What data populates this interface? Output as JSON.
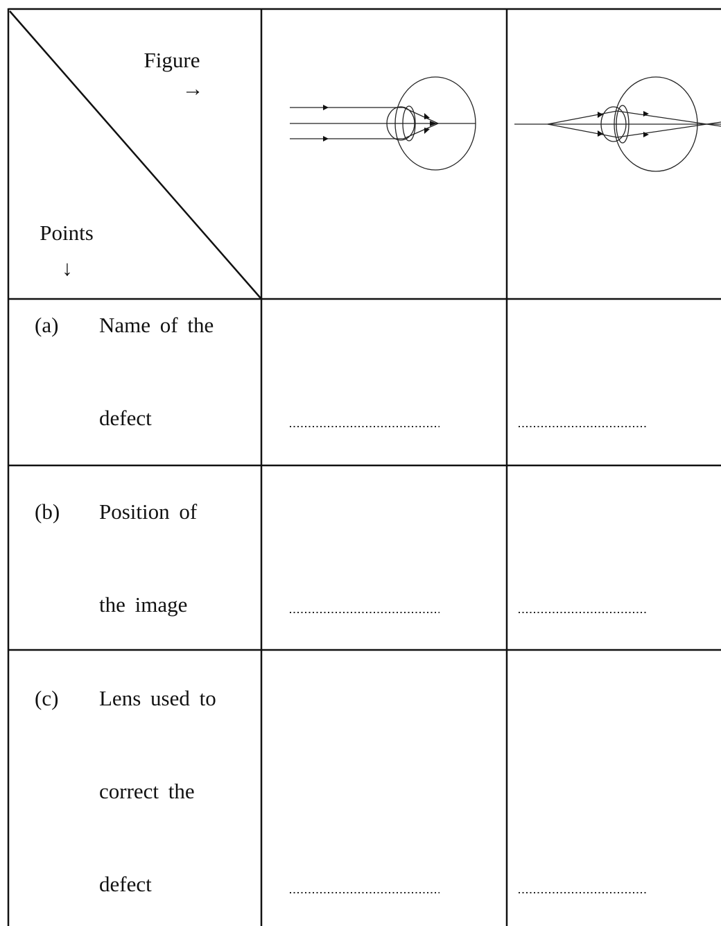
{
  "header": {
    "figure_label": "Figure",
    "figure_arrow": "→",
    "points_label": "Points",
    "points_arrow": "↓"
  },
  "rows": [
    {
      "label": "(a)",
      "lines": [
        "Name of the",
        "defect"
      ]
    },
    {
      "label": "(b)",
      "lines": [
        "Position of",
        "the image"
      ]
    },
    {
      "label": "(c)",
      "lines": [
        "Lens used to",
        "correct the",
        "defect"
      ]
    }
  ]
}
